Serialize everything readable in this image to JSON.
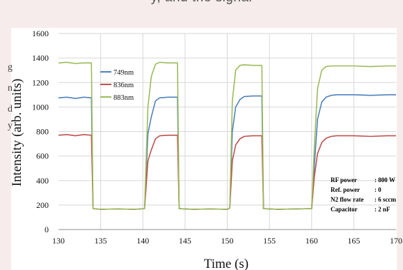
{
  "header_fragment": "y, and the signal",
  "left_fragments": [
    "g",
    "n",
    "d",
    "y"
  ],
  "chart_data": {
    "type": "line",
    "xlabel": "Time (s)",
    "ylabel": "Intensity (arb. units)",
    "xlim": [
      130,
      170
    ],
    "ylim": [
      0,
      1600
    ],
    "xticks": [
      "130",
      "135",
      "140",
      "145",
      "150",
      "155",
      "160",
      "165",
      "170"
    ],
    "yticks": [
      "0",
      "200",
      "400",
      "600",
      "800",
      "1000",
      "1200",
      "1400",
      "1600"
    ],
    "grid": true,
    "legend_position": "top-left",
    "series": [
      {
        "name": "749nm",
        "color": "#4f81bd",
        "x": [
          130,
          131,
          132,
          133,
          133.9,
          134.1,
          135,
          137,
          139,
          140.2,
          140.6,
          141.0,
          141.5,
          142.0,
          143,
          144.1,
          144.3,
          146,
          148,
          150,
          150.3,
          150.6,
          151.0,
          151.5,
          152,
          153,
          154.1,
          154.3,
          156,
          158,
          160,
          160.3,
          160.7,
          161.2,
          161.7,
          162.3,
          163,
          165,
          167,
          169,
          170
        ],
        "y": [
          1075,
          1080,
          1070,
          1080,
          1075,
          170,
          165,
          168,
          165,
          170,
          780,
          920,
          1050,
          1075,
          1080,
          1080,
          170,
          165,
          168,
          165,
          175,
          800,
          1000,
          1060,
          1085,
          1090,
          1090,
          170,
          165,
          168,
          170,
          500,
          900,
          1040,
          1080,
          1095,
          1100,
          1100,
          1095,
          1100,
          1100
        ]
      },
      {
        "name": "836nm",
        "color": "#c0504d",
        "x": [
          130,
          131,
          132,
          133,
          133.9,
          134.1,
          135,
          137,
          139,
          140.2,
          140.6,
          141.0,
          141.5,
          142.0,
          143,
          144.1,
          144.3,
          146,
          148,
          150,
          150.3,
          150.6,
          151.0,
          151.5,
          152,
          153,
          154.1,
          154.3,
          156,
          158,
          160,
          160.3,
          160.7,
          161.2,
          161.7,
          162.3,
          163,
          165,
          167,
          169,
          170
        ],
        "y": [
          770,
          775,
          765,
          775,
          770,
          170,
          165,
          168,
          165,
          170,
          560,
          650,
          740,
          765,
          770,
          770,
          170,
          165,
          168,
          165,
          175,
          560,
          690,
          740,
          760,
          765,
          765,
          170,
          165,
          168,
          170,
          420,
          620,
          710,
          745,
          760,
          765,
          765,
          760,
          765,
          765
        ]
      },
      {
        "name": "883nm",
        "color": "#9bbb59",
        "x": [
          130,
          131,
          132,
          133,
          133.9,
          134.1,
          135,
          137,
          139,
          140.2,
          140.6,
          141.0,
          141.5,
          142.0,
          143,
          144.1,
          144.3,
          146,
          148,
          150,
          150.3,
          150.6,
          151.0,
          151.5,
          152,
          153,
          154.1,
          154.3,
          156,
          158,
          160,
          160.3,
          160.7,
          161.2,
          161.7,
          162.3,
          163,
          165,
          167,
          169,
          170
        ],
        "y": [
          1360,
          1365,
          1355,
          1360,
          1360,
          170,
          165,
          168,
          165,
          170,
          1000,
          1250,
          1350,
          1365,
          1360,
          1360,
          170,
          165,
          168,
          165,
          175,
          1050,
          1300,
          1340,
          1345,
          1340,
          1340,
          170,
          165,
          168,
          170,
          650,
          1150,
          1300,
          1330,
          1335,
          1335,
          1335,
          1330,
          1335,
          1335
        ]
      }
    ],
    "annotation": [
      {
        "label": "RF power",
        "value": ": 800 W"
      },
      {
        "label": "Ref. power",
        "value": ": 0"
      },
      {
        "label": "N2 flow rate",
        "value": ": 6 sccm"
      },
      {
        "label": "Capacitor",
        "value": ": 2 nF"
      }
    ]
  }
}
